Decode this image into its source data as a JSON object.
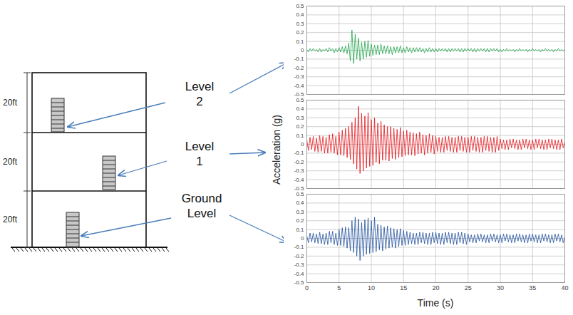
{
  "diagram": {
    "story_height_labels": [
      "20ft",
      "20ft",
      "20ft"
    ],
    "levels": [
      "Level 2",
      "Level 1",
      "Ground Level"
    ]
  },
  "chart_data": [
    {
      "type": "line",
      "color": "#1fa34a",
      "grid": true,
      "tick_labels": "y",
      "xlim": [
        0,
        40
      ],
      "xticks": [
        0,
        5,
        10,
        15,
        20,
        25,
        30,
        35,
        40
      ],
      "ylim": [
        -0.5,
        0.5
      ],
      "yticks": [
        -0.5,
        -0.4,
        -0.3,
        -0.2,
        -0.1,
        0,
        0.1,
        0.2,
        0.3,
        0.4,
        0.5
      ],
      "x": [
        0,
        0.25,
        0.5,
        0.75,
        1,
        1.25,
        1.5,
        1.75,
        2,
        2.25,
        2.5,
        2.75,
        3,
        3.25,
        3.5,
        3.75,
        4,
        4.25,
        4.5,
        4.75,
        5,
        5.25,
        5.5,
        5.75,
        6,
        6.25,
        6.5,
        6.75,
        7,
        7.25,
        7.5,
        7.75,
        8,
        8.25,
        8.5,
        8.75,
        9,
        9.25,
        9.5,
        9.75,
        10,
        10.25,
        10.5,
        10.75,
        11,
        11.25,
        11.5,
        11.75,
        12,
        12.25,
        12.5,
        12.75,
        13,
        13.25,
        13.5,
        13.75,
        14,
        14.25,
        14.5,
        14.75,
        15,
        15.25,
        15.5,
        15.75,
        16,
        16.25,
        16.5,
        16.75,
        17,
        17.25,
        17.5,
        17.75,
        18,
        18.25,
        18.5,
        18.75,
        19,
        19.25,
        19.5,
        19.75,
        20,
        20.25,
        20.5,
        20.75,
        21,
        21.25,
        21.5,
        21.75,
        22,
        22.25,
        22.5,
        22.75,
        23,
        23.25,
        23.5,
        23.75,
        24,
        24.25,
        24.5,
        24.75,
        25,
        25.25,
        25.5,
        25.75,
        26,
        26.25,
        26.5,
        26.75,
        27,
        27.25,
        27.5,
        27.75,
        28,
        28.25,
        28.5,
        28.75,
        29,
        29.25,
        29.5,
        29.75,
        30,
        30.25,
        30.5,
        30.75,
        31,
        31.25,
        31.5,
        31.75,
        32,
        32.25,
        32.5,
        32.75,
        33,
        33.25,
        33.5,
        33.75,
        34,
        34.25,
        34.5,
        34.75,
        35,
        35.25,
        35.5,
        35.75,
        36,
        36.25,
        36.5,
        36.75,
        37,
        37.25,
        37.5,
        37.75,
        38,
        38.25,
        38.5,
        38.75,
        39,
        39.25,
        39.5,
        39.75,
        40
      ],
      "values": [
        0.01,
        -0.02,
        0.02,
        -0.01,
        0.02,
        -0.01,
        0.01,
        -0.02,
        0.02,
        -0.02,
        0.01,
        -0.01,
        0.02,
        -0.02,
        0.03,
        -0.01,
        0.02,
        -0.03,
        0.02,
        -0.02,
        0.03,
        -0.02,
        0.04,
        -0.03,
        0.05,
        -0.04,
        0.08,
        -0.12,
        0.23,
        -0.15,
        0.18,
        -0.1,
        0.14,
        -0.12,
        0.09,
        -0.1,
        0.1,
        -0.08,
        0.11,
        -0.07,
        0.07,
        -0.06,
        0.06,
        -0.05,
        0.06,
        -0.05,
        0.07,
        -0.04,
        0.05,
        -0.04,
        0.05,
        -0.04,
        0.04,
        -0.05,
        0.04,
        -0.03,
        0.04,
        -0.03,
        0.05,
        -0.03,
        0.03,
        -0.03,
        0.04,
        -0.02,
        0.03,
        -0.03,
        0.03,
        -0.02,
        0.03,
        -0.02,
        0.03,
        -0.02,
        0.02,
        -0.03,
        0.02,
        -0.02,
        0.03,
        -0.02,
        0.02,
        -0.02,
        0.02,
        -0.02,
        0.02,
        -0.01,
        0.02,
        -0.01,
        0.02,
        -0.02,
        0.02,
        -0.02,
        0.02,
        -0.01,
        0.02,
        -0.01,
        0.02,
        -0.02,
        0.02,
        -0.02,
        0.02,
        -0.01,
        0.02,
        -0.01,
        0.02,
        -0.02,
        0.02,
        -0.02,
        0.02,
        -0.01,
        0.02,
        -0.01,
        0.02,
        -0.02,
        0.02,
        -0.02,
        0.02,
        -0.01,
        0.02,
        -0.01,
        0.02,
        -0.02,
        0.01,
        -0.02,
        0.01,
        -0.01,
        0.02,
        -0.01,
        0.01,
        -0.01,
        0.01,
        -0.02,
        0.01,
        -0.01,
        0.02,
        -0.01,
        0.01,
        -0.01,
        0.01,
        -0.02,
        0.01,
        -0.01,
        0.02,
        -0.01,
        0.01,
        -0.01,
        0.01,
        -0.02,
        0.01,
        -0.01,
        0.02,
        -0.01,
        0.01,
        -0.01,
        0.01,
        -0.02,
        0.01,
        -0.01,
        0.02,
        -0.01,
        0.01,
        -0.01,
        0.01
      ]
    },
    {
      "type": "line",
      "color": "#e3141b",
      "grid": true,
      "tick_labels": "y",
      "ylabel": "Acceleration (g)",
      "xlim": [
        0,
        40
      ],
      "xticks": [
        0,
        5,
        10,
        15,
        20,
        25,
        30,
        35,
        40
      ],
      "ylim": [
        -0.5,
        0.5
      ],
      "yticks": [
        -0.5,
        -0.4,
        -0.3,
        -0.2,
        -0.1,
        0,
        0.1,
        0.2,
        0.3,
        0.4,
        0.5
      ],
      "x": [
        0,
        0.25,
        0.5,
        0.75,
        1,
        1.25,
        1.5,
        1.75,
        2,
        2.25,
        2.5,
        2.75,
        3,
        3.25,
        3.5,
        3.75,
        4,
        4.25,
        4.5,
        4.75,
        5,
        5.25,
        5.5,
        5.75,
        6,
        6.25,
        6.5,
        6.75,
        7,
        7.25,
        7.5,
        7.75,
        8,
        8.25,
        8.5,
        8.75,
        9,
        9.25,
        9.5,
        9.75,
        10,
        10.25,
        10.5,
        10.75,
        11,
        11.25,
        11.5,
        11.75,
        12,
        12.25,
        12.5,
        12.75,
        13,
        13.25,
        13.5,
        13.75,
        14,
        14.25,
        14.5,
        14.75,
        15,
        15.25,
        15.5,
        15.75,
        16,
        16.25,
        16.5,
        16.75,
        17,
        17.25,
        17.5,
        17.75,
        18,
        18.25,
        18.5,
        18.75,
        19,
        19.25,
        19.5,
        19.75,
        20,
        20.25,
        20.5,
        20.75,
        21,
        21.25,
        21.5,
        21.75,
        22,
        22.25,
        22.5,
        22.75,
        23,
        23.25,
        23.5,
        23.75,
        24,
        24.25,
        24.5,
        24.75,
        25,
        25.25,
        25.5,
        25.75,
        26,
        26.25,
        26.5,
        26.75,
        27,
        27.25,
        27.5,
        27.75,
        28,
        28.25,
        28.5,
        28.75,
        29,
        29.25,
        29.5,
        29.75,
        30,
        30.25,
        30.5,
        30.75,
        31,
        31.25,
        31.5,
        31.75,
        32,
        32.25,
        32.5,
        32.75,
        33,
        33.25,
        33.5,
        33.75,
        34,
        34.25,
        34.5,
        34.75,
        35,
        35.25,
        35.5,
        35.75,
        36,
        36.25,
        36.5,
        36.75,
        37,
        37.25,
        37.5,
        37.75,
        38,
        38.25,
        38.5,
        38.75,
        39,
        39.25,
        39.5,
        39.75,
        40
      ],
      "values": [
        0.05,
        -0.07,
        0.08,
        -0.06,
        0.09,
        -0.08,
        0.07,
        -0.09,
        0.1,
        -0.08,
        0.09,
        -0.1,
        0.08,
        -0.1,
        0.11,
        -0.09,
        0.12,
        -0.1,
        0.09,
        -0.12,
        0.14,
        -0.12,
        0.16,
        -0.13,
        0.18,
        -0.15,
        0.2,
        -0.17,
        0.25,
        -0.22,
        0.3,
        -0.28,
        0.43,
        -0.33,
        0.35,
        -0.3,
        0.32,
        -0.27,
        0.36,
        -0.25,
        0.28,
        -0.24,
        0.3,
        -0.2,
        0.24,
        -0.22,
        0.26,
        -0.18,
        0.22,
        -0.18,
        0.2,
        -0.19,
        0.2,
        -0.16,
        0.18,
        -0.17,
        0.17,
        -0.15,
        0.19,
        -0.14,
        0.15,
        -0.13,
        0.16,
        -0.12,
        0.14,
        -0.12,
        0.13,
        -0.13,
        0.12,
        -0.11,
        0.14,
        -0.1,
        0.11,
        -0.12,
        0.1,
        -0.1,
        0.12,
        -0.09,
        0.1,
        -0.11,
        0.09,
        -0.08,
        0.08,
        -0.09,
        0.08,
        -0.09,
        0.09,
        -0.07,
        0.09,
        -0.08,
        0.08,
        -0.09,
        0.08,
        -0.09,
        0.09,
        -0.07,
        0.09,
        -0.08,
        0.08,
        -0.09,
        0.08,
        -0.09,
        0.09,
        -0.07,
        0.09,
        -0.08,
        0.08,
        -0.09,
        0.08,
        -0.09,
        0.09,
        -0.07,
        0.09,
        -0.08,
        0.08,
        -0.09,
        0.08,
        -0.09,
        0.09,
        -0.07,
        0.06,
        -0.05,
        0.05,
        -0.06,
        0.05,
        -0.06,
        0.06,
        -0.04,
        0.06,
        -0.05,
        0.05,
        -0.06,
        0.05,
        -0.06,
        0.06,
        -0.04,
        0.06,
        -0.05,
        0.05,
        -0.06,
        0.05,
        -0.06,
        0.06,
        -0.04,
        0.06,
        -0.05,
        0.05,
        -0.06,
        0.05,
        -0.06,
        0.06,
        -0.04,
        0.06,
        -0.05,
        0.05,
        -0.06,
        0.05,
        -0.06,
        0.06,
        -0.04,
        0.03
      ]
    },
    {
      "type": "line",
      "color": "#1f4f9c",
      "grid": true,
      "xlabel": "Time (s)",
      "xlim": [
        0,
        40
      ],
      "xticks": [
        0,
        5,
        10,
        15,
        20,
        25,
        30,
        35,
        40
      ],
      "ylim": [
        -0.5,
        0.5
      ],
      "yticks": [
        -0.5,
        -0.4,
        -0.3,
        -0.2,
        -0.1,
        0,
        0.1,
        0.2,
        0.3,
        0.4,
        0.5
      ],
      "x": [
        0,
        0.25,
        0.5,
        0.75,
        1,
        1.25,
        1.5,
        1.75,
        2,
        2.25,
        2.5,
        2.75,
        3,
        3.25,
        3.5,
        3.75,
        4,
        4.25,
        4.5,
        4.75,
        5,
        5.25,
        5.5,
        5.75,
        6,
        6.25,
        6.5,
        6.75,
        7,
        7.25,
        7.5,
        7.75,
        8,
        8.25,
        8.5,
        8.75,
        9,
        9.25,
        9.5,
        9.75,
        10,
        10.25,
        10.5,
        10.75,
        11,
        11.25,
        11.5,
        11.75,
        12,
        12.25,
        12.5,
        12.75,
        13,
        13.25,
        13.5,
        13.75,
        14,
        14.25,
        14.5,
        14.75,
        15,
        15.25,
        15.5,
        15.75,
        16,
        16.25,
        16.5,
        16.75,
        17,
        17.25,
        17.5,
        17.75,
        18,
        18.25,
        18.5,
        18.75,
        19,
        19.25,
        19.5,
        19.75,
        20,
        20.25,
        20.5,
        20.75,
        21,
        21.25,
        21.5,
        21.75,
        22,
        22.25,
        22.5,
        22.75,
        23,
        23.25,
        23.5,
        23.75,
        24,
        24.25,
        24.5,
        24.75,
        25,
        25.25,
        25.5,
        25.75,
        26,
        26.25,
        26.5,
        26.75,
        27,
        27.25,
        27.5,
        27.75,
        28,
        28.25,
        28.5,
        28.75,
        29,
        29.25,
        29.5,
        29.75,
        30,
        30.25,
        30.5,
        30.75,
        31,
        31.25,
        31.5,
        31.75,
        32,
        32.25,
        32.5,
        32.75,
        33,
        33.25,
        33.5,
        33.75,
        34,
        34.25,
        34.5,
        34.75,
        35,
        35.25,
        35.5,
        35.75,
        36,
        36.25,
        36.5,
        36.75,
        37,
        37.25,
        37.5,
        37.75,
        38,
        38.25,
        38.5,
        38.75,
        39,
        39.25,
        39.5,
        39.75,
        40
      ],
      "values": [
        0.03,
        -0.05,
        0.06,
        -0.04,
        0.06,
        -0.05,
        0.05,
        -0.06,
        0.07,
        -0.06,
        0.05,
        -0.07,
        0.06,
        -0.07,
        0.08,
        -0.05,
        0.08,
        -0.07,
        0.06,
        -0.08,
        0.1,
        -0.08,
        0.12,
        -0.09,
        0.13,
        -0.11,
        0.12,
        -0.14,
        0.2,
        -0.16,
        0.24,
        -0.2,
        0.22,
        -0.25,
        0.18,
        -0.2,
        0.21,
        -0.18,
        0.23,
        -0.17,
        0.2,
        -0.16,
        0.24,
        -0.15,
        0.16,
        -0.13,
        0.15,
        -0.14,
        0.13,
        -0.12,
        0.14,
        -0.11,
        0.12,
        -0.1,
        0.11,
        -0.11,
        0.1,
        -0.09,
        0.11,
        -0.08,
        0.09,
        -0.08,
        0.08,
        -0.07,
        0.07,
        -0.06,
        0.06,
        -0.07,
        0.06,
        -0.07,
        0.07,
        -0.05,
        0.07,
        -0.06,
        0.06,
        -0.07,
        0.06,
        -0.07,
        0.07,
        -0.05,
        0.07,
        -0.06,
        0.06,
        -0.07,
        0.06,
        -0.07,
        0.07,
        -0.05,
        0.07,
        -0.06,
        0.06,
        -0.07,
        0.06,
        -0.07,
        0.07,
        -0.05,
        0.07,
        -0.06,
        0.06,
        -0.07,
        0.05,
        -0.04,
        0.04,
        -0.05,
        0.04,
        -0.05,
        0.05,
        -0.03,
        0.05,
        -0.04,
        0.04,
        -0.05,
        0.04,
        -0.05,
        0.05,
        -0.03,
        0.05,
        -0.04,
        0.04,
        -0.05,
        0.04,
        -0.05,
        0.05,
        -0.03,
        0.05,
        -0.04,
        0.04,
        -0.05,
        0.04,
        -0.05,
        0.05,
        -0.03,
        0.05,
        -0.04,
        0.04,
        -0.05,
        0.04,
        -0.05,
        0.05,
        -0.03,
        0.05,
        -0.04,
        0.04,
        -0.05,
        0.04,
        -0.05,
        0.05,
        -0.03,
        0.05,
        -0.04,
        0.04,
        -0.05,
        0.04,
        -0.05,
        0.05,
        -0.03,
        0.05,
        -0.04,
        0.04,
        -0.05,
        0.02
      ]
    }
  ]
}
